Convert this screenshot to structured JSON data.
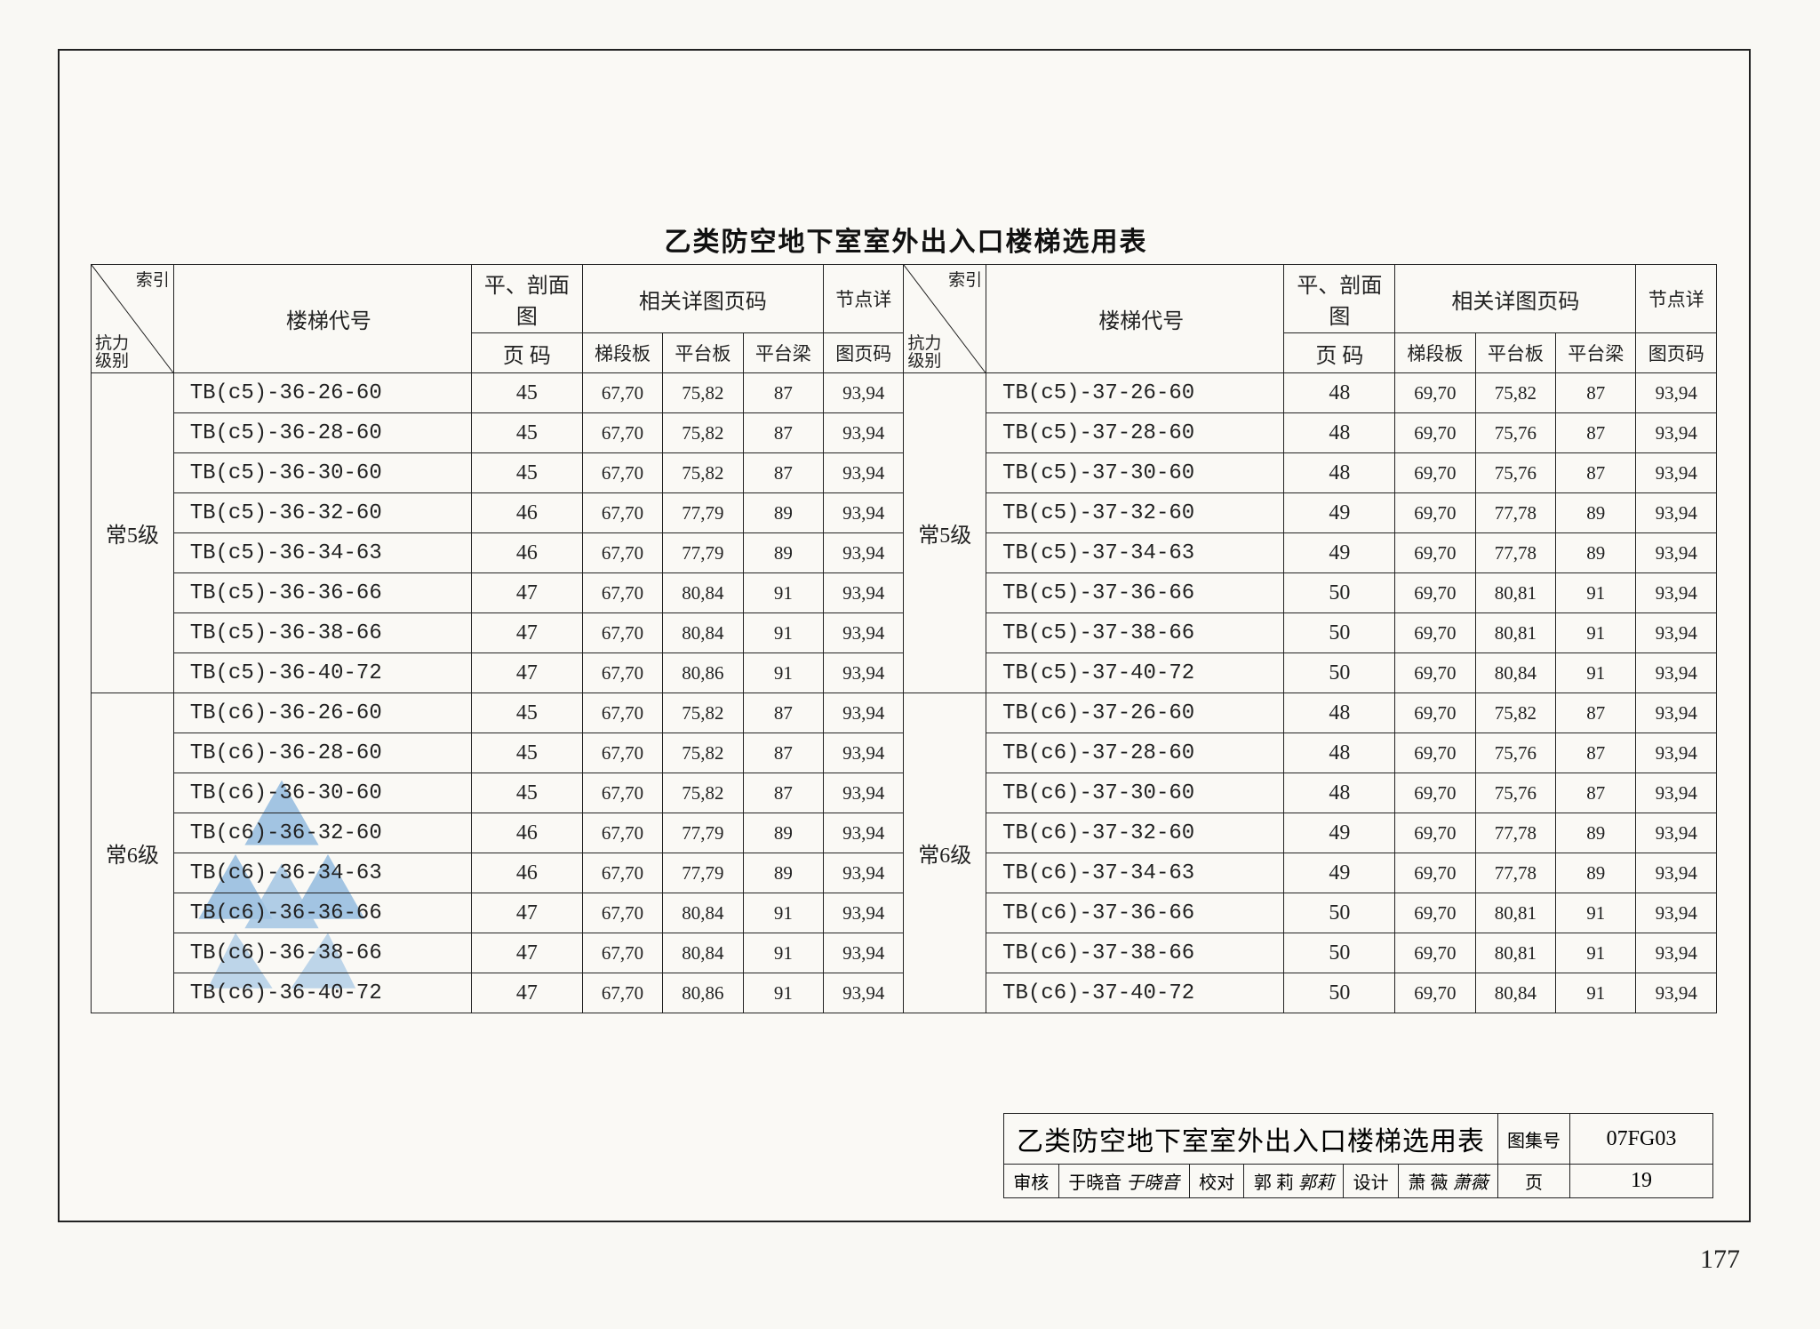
{
  "title": "乙类防空地下室室外出入口楼梯选用表",
  "header": {
    "diag_top": "索引",
    "diag_bottom_1": "抗力",
    "diag_bottom_2": "级别",
    "code": "楼梯代号",
    "plan_section_top": "平、剖面图",
    "plan_section_bottom": "页 码",
    "detail_group": "相关详图页码",
    "detail_sub1": "梯段板",
    "detail_sub2": "平台板",
    "detail_sub3": "平台梁",
    "node_top": "节点详",
    "node_bottom": "图页码"
  },
  "groups_left": [
    {
      "label": "常5级",
      "rows": [
        {
          "code": "TB(c5)-36-26-60",
          "p": "45",
          "d1": "67,70",
          "d2": "75,82",
          "d3": "87",
          "n": "93,94"
        },
        {
          "code": "TB(c5)-36-28-60",
          "p": "45",
          "d1": "67,70",
          "d2": "75,82",
          "d3": "87",
          "n": "93,94"
        },
        {
          "code": "TB(c5)-36-30-60",
          "p": "45",
          "d1": "67,70",
          "d2": "75,82",
          "d3": "87",
          "n": "93,94"
        },
        {
          "code": "TB(c5)-36-32-60",
          "p": "46",
          "d1": "67,70",
          "d2": "77,79",
          "d3": "89",
          "n": "93,94"
        },
        {
          "code": "TB(c5)-36-34-63",
          "p": "46",
          "d1": "67,70",
          "d2": "77,79",
          "d3": "89",
          "n": "93,94"
        },
        {
          "code": "TB(c5)-36-36-66",
          "p": "47",
          "d1": "67,70",
          "d2": "80,84",
          "d3": "91",
          "n": "93,94"
        },
        {
          "code": "TB(c5)-36-38-66",
          "p": "47",
          "d1": "67,70",
          "d2": "80,84",
          "d3": "91",
          "n": "93,94"
        },
        {
          "code": "TB(c5)-36-40-72",
          "p": "47",
          "d1": "67,70",
          "d2": "80,86",
          "d3": "91",
          "n": "93,94"
        }
      ]
    },
    {
      "label": "常6级",
      "rows": [
        {
          "code": "TB(c6)-36-26-60",
          "p": "45",
          "d1": "67,70",
          "d2": "75,82",
          "d3": "87",
          "n": "93,94"
        },
        {
          "code": "TB(c6)-36-28-60",
          "p": "45",
          "d1": "67,70",
          "d2": "75,82",
          "d3": "87",
          "n": "93,94"
        },
        {
          "code": "TB(c6)-36-30-60",
          "p": "45",
          "d1": "67,70",
          "d2": "75,82",
          "d3": "87",
          "n": "93,94"
        },
        {
          "code": "TB(c6)-36-32-60",
          "p": "46",
          "d1": "67,70",
          "d2": "77,79",
          "d3": "89",
          "n": "93,94"
        },
        {
          "code": "TB(c6)-36-34-63",
          "p": "46",
          "d1": "67,70",
          "d2": "77,79",
          "d3": "89",
          "n": "93,94"
        },
        {
          "code": "TB(c6)-36-36-66",
          "p": "47",
          "d1": "67,70",
          "d2": "80,84",
          "d3": "91",
          "n": "93,94"
        },
        {
          "code": "TB(c6)-36-38-66",
          "p": "47",
          "d1": "67,70",
          "d2": "80,84",
          "d3": "91",
          "n": "93,94"
        },
        {
          "code": "TB(c6)-36-40-72",
          "p": "47",
          "d1": "67,70",
          "d2": "80,86",
          "d3": "91",
          "n": "93,94"
        }
      ]
    }
  ],
  "groups_right": [
    {
      "label": "常5级",
      "rows": [
        {
          "code": "TB(c5)-37-26-60",
          "p": "48",
          "d1": "69,70",
          "d2": "75,82",
          "d3": "87",
          "n": "93,94"
        },
        {
          "code": "TB(c5)-37-28-60",
          "p": "48",
          "d1": "69,70",
          "d2": "75,76",
          "d3": "87",
          "n": "93,94"
        },
        {
          "code": "TB(c5)-37-30-60",
          "p": "48",
          "d1": "69,70",
          "d2": "75,76",
          "d3": "87",
          "n": "93,94"
        },
        {
          "code": "TB(c5)-37-32-60",
          "p": "49",
          "d1": "69,70",
          "d2": "77,78",
          "d3": "89",
          "n": "93,94"
        },
        {
          "code": "TB(c5)-37-34-63",
          "p": "49",
          "d1": "69,70",
          "d2": "77,78",
          "d3": "89",
          "n": "93,94"
        },
        {
          "code": "TB(c5)-37-36-66",
          "p": "50",
          "d1": "69,70",
          "d2": "80,81",
          "d3": "91",
          "n": "93,94"
        },
        {
          "code": "TB(c5)-37-38-66",
          "p": "50",
          "d1": "69,70",
          "d2": "80,81",
          "d3": "91",
          "n": "93,94"
        },
        {
          "code": "TB(c5)-37-40-72",
          "p": "50",
          "d1": "69,70",
          "d2": "80,84",
          "d3": "91",
          "n": "93,94"
        }
      ]
    },
    {
      "label": "常6级",
      "rows": [
        {
          "code": "TB(c6)-37-26-60",
          "p": "48",
          "d1": "69,70",
          "d2": "75,82",
          "d3": "87",
          "n": "93,94"
        },
        {
          "code": "TB(c6)-37-28-60",
          "p": "48",
          "d1": "69,70",
          "d2": "75,76",
          "d3": "87",
          "n": "93,94"
        },
        {
          "code": "TB(c6)-37-30-60",
          "p": "48",
          "d1": "69,70",
          "d2": "75,76",
          "d3": "87",
          "n": "93,94"
        },
        {
          "code": "TB(c6)-37-32-60",
          "p": "49",
          "d1": "69,70",
          "d2": "77,78",
          "d3": "89",
          "n": "93,94"
        },
        {
          "code": "TB(c6)-37-34-63",
          "p": "49",
          "d1": "69,70",
          "d2": "77,78",
          "d3": "89",
          "n": "93,94"
        },
        {
          "code": "TB(c6)-37-36-66",
          "p": "50",
          "d1": "69,70",
          "d2": "80,81",
          "d3": "91",
          "n": "93,94"
        },
        {
          "code": "TB(c6)-37-38-66",
          "p": "50",
          "d1": "69,70",
          "d2": "80,81",
          "d3": "91",
          "n": "93,94"
        },
        {
          "code": "TB(c6)-37-40-72",
          "p": "50",
          "d1": "69,70",
          "d2": "80,84",
          "d3": "91",
          "n": "93,94"
        }
      ]
    }
  ],
  "title_block": {
    "title": "乙类防空地下室室外出入口楼梯选用表",
    "atlas_label": "图集号",
    "atlas_value": "07FG03",
    "review_label": "审核",
    "review_name": "于晓音",
    "review_sig": "于晓音",
    "check_label": "校对",
    "check_name": "郭 莉",
    "check_sig": "郭莉",
    "design_label": "设计",
    "design_name": "萧 薇",
    "design_sig": "萧薇",
    "page_label": "页",
    "page_value": "19"
  },
  "outer_page": "177",
  "watermark_color": "#5b9ad4",
  "border_color": "#222222",
  "bg_color": "#faf9f5"
}
